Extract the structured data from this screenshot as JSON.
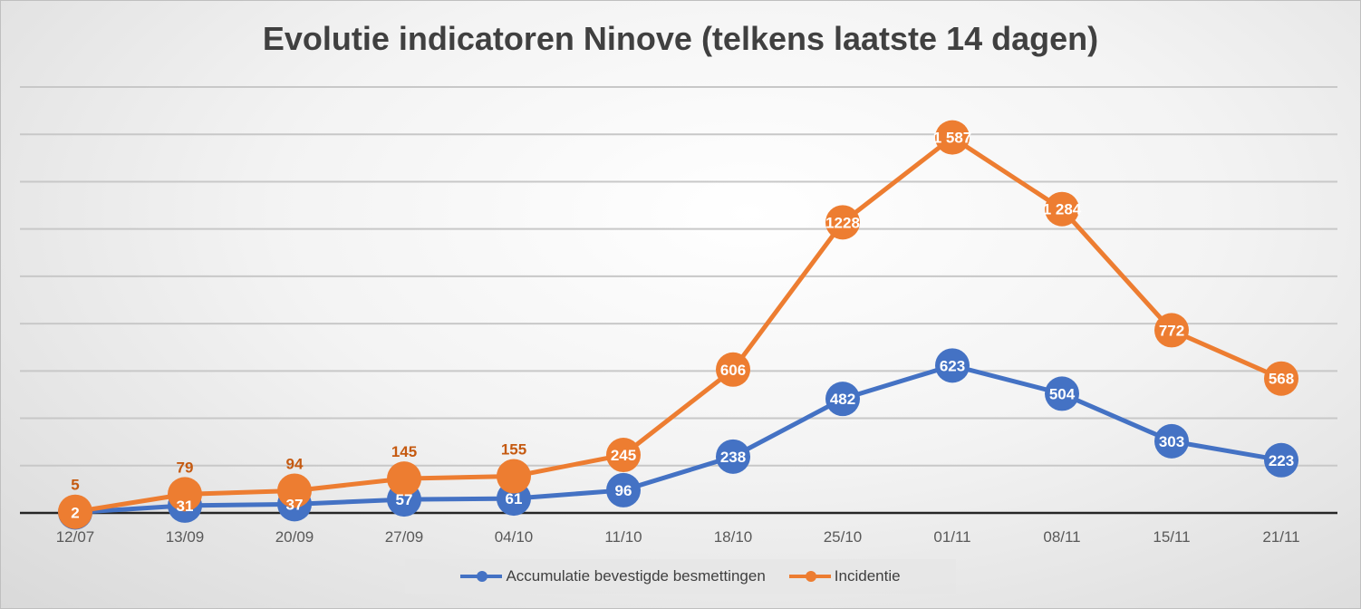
{
  "chart_data": {
    "type": "line",
    "title": "Evolutie indicatoren Ninove (telkens laatste 14 dagen)",
    "categories": [
      "12/07",
      "13/09",
      "20/09",
      "27/09",
      "04/10",
      "11/10",
      "18/10",
      "25/10",
      "01/11",
      "08/11",
      "15/11",
      "21/11"
    ],
    "ylim": [
      0,
      1800
    ],
    "ytick_step": 200,
    "grid": true,
    "legend_position": "bottom",
    "series": [
      {
        "name": "Accumulatie bevestigde besmettingen",
        "color": "#4472c4",
        "values": [
          2,
          31,
          37,
          57,
          61,
          96,
          238,
          482,
          623,
          504,
          303,
          223
        ],
        "labels": [
          "2",
          "31",
          "37",
          "57",
          "61",
          "96",
          "238",
          "482",
          "623",
          "504",
          "303",
          "223"
        ]
      },
      {
        "name": "Incidentie",
        "color": "#ed7d31",
        "values": [
          5,
          79,
          94,
          145,
          155,
          245,
          606,
          1228,
          1587,
          1284,
          772,
          568
        ],
        "labels": [
          "5",
          "79",
          "94",
          "145",
          "155",
          "245",
          "606",
          "1228",
          "1 587",
          "1 284",
          "772",
          "568"
        ]
      }
    ]
  }
}
